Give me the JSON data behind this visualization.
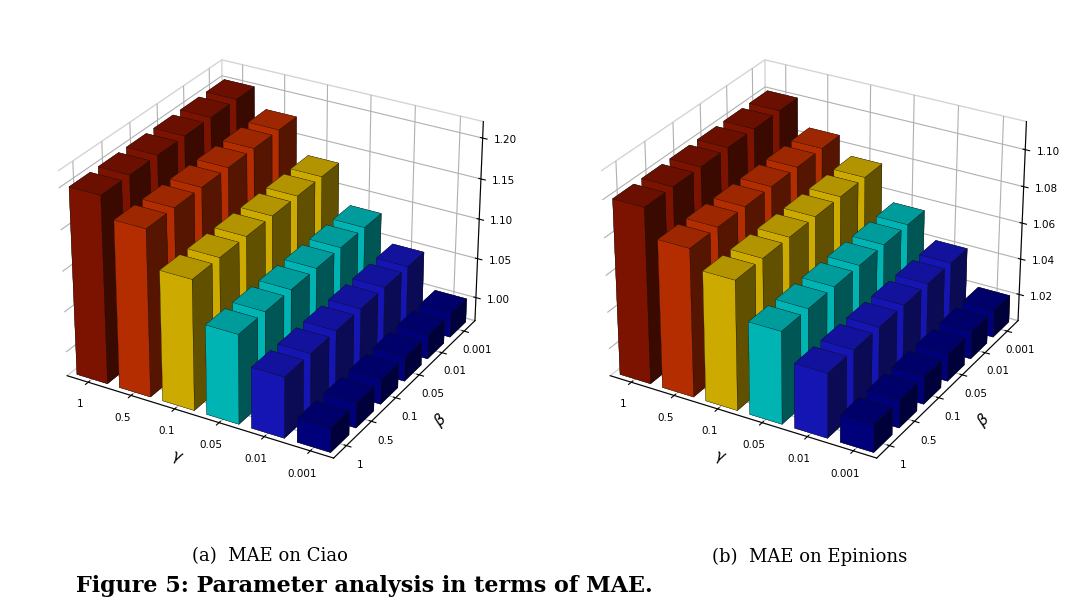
{
  "beta_labels": [
    "1",
    "0.5",
    "0.1",
    "0.05",
    "0.01",
    "0.001"
  ],
  "gamma_labels": [
    "1",
    "0.5",
    "0.1",
    "0.05",
    "0.01",
    "0.001"
  ],
  "col_colors": [
    "#8B1500",
    "#CC3300",
    "#E8C000",
    "#00CCCC",
    "#1818CC",
    "#00008B"
  ],
  "ciao_data": [
    [
      1.2,
      1.175,
      1.13,
      1.08,
      1.045,
      1.0
    ],
    [
      1.2,
      1.175,
      1.13,
      1.08,
      1.045,
      1.0
    ],
    [
      1.2,
      1.175,
      1.13,
      1.08,
      1.045,
      1.0
    ],
    [
      1.2,
      1.175,
      1.13,
      1.08,
      1.045,
      1.0
    ],
    [
      1.2,
      1.175,
      1.13,
      1.08,
      1.045,
      1.0
    ],
    [
      1.2,
      1.175,
      1.13,
      1.08,
      1.045,
      1.0
    ]
  ],
  "epinions_data": [
    [
      1.1,
      1.085,
      1.075,
      1.055,
      1.04,
      1.02
    ],
    [
      1.1,
      1.085,
      1.075,
      1.055,
      1.04,
      1.02
    ],
    [
      1.1,
      1.085,
      1.075,
      1.055,
      1.04,
      1.02
    ],
    [
      1.1,
      1.085,
      1.075,
      1.055,
      1.04,
      1.02
    ],
    [
      1.1,
      1.085,
      1.075,
      1.055,
      1.04,
      1.02
    ],
    [
      1.1,
      1.085,
      1.075,
      1.055,
      1.04,
      1.02
    ]
  ],
  "ciao_zbase": 0.97,
  "ciao_ztop": 1.22,
  "ciao_zticks": [
    1.0,
    1.05,
    1.1,
    1.15,
    1.2
  ],
  "epinions_zbase": 1.005,
  "epinions_ztop": 1.115,
  "epinions_zticks": [
    1.02,
    1.04,
    1.06,
    1.08,
    1.1
  ],
  "subtitle_a": "(a)  MAE on Ciao",
  "subtitle_b": "(b)  MAE on Epinions",
  "figure_caption": "Figure 5: Parameter analysis in terms of MAE.",
  "elev": 28,
  "azim": -60
}
